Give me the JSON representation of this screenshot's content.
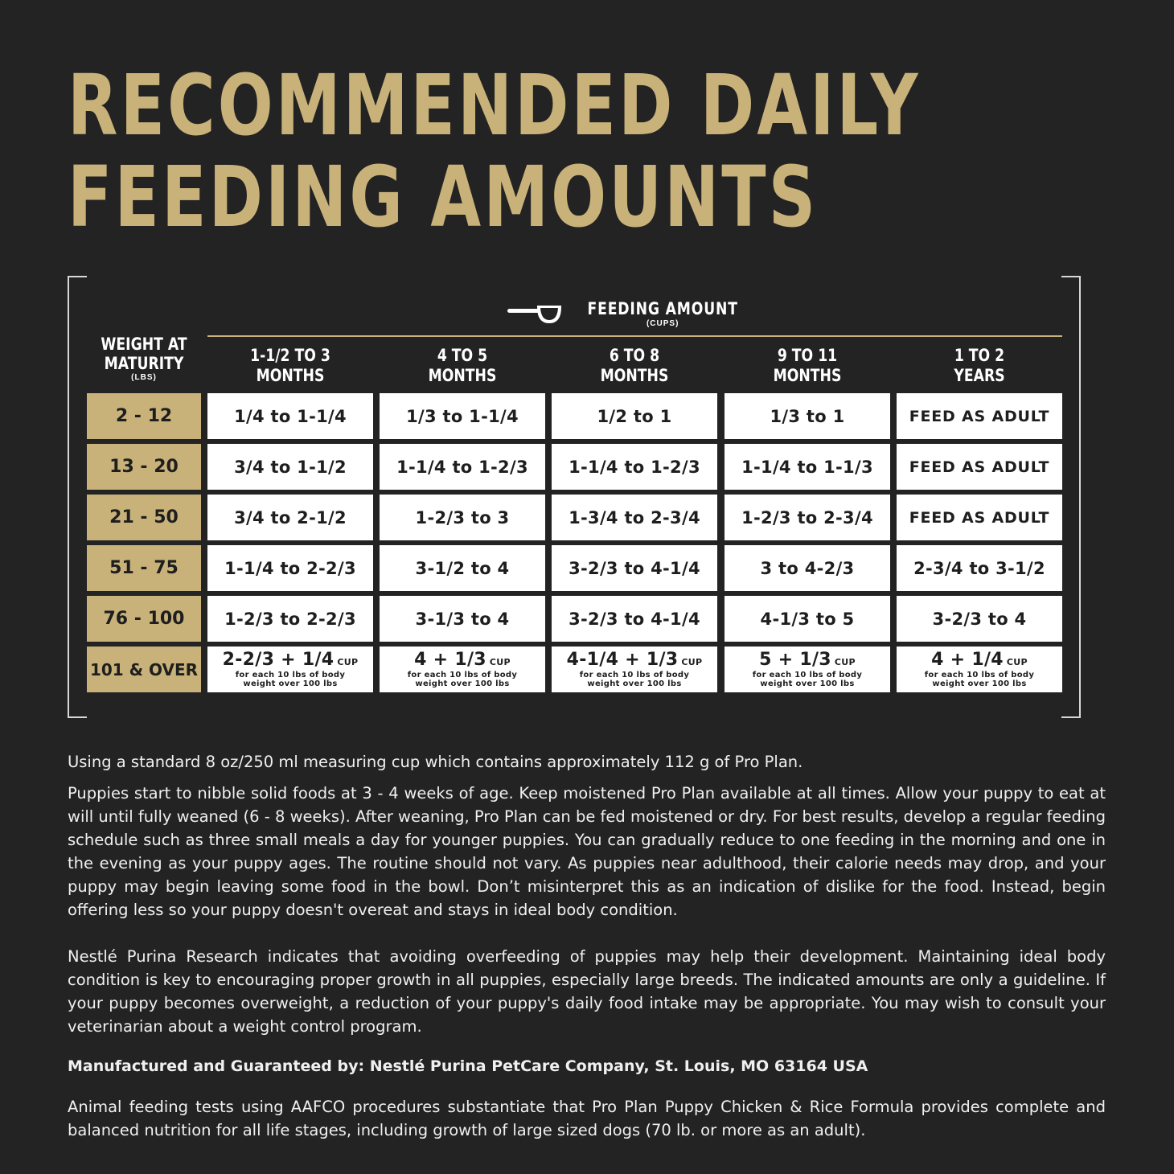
{
  "title": {
    "line1": "RECOMMENDED DAILY",
    "line2": "FEEDING AMOUNTS"
  },
  "icons": {
    "measuring_cup": "measuring-scoop-icon"
  },
  "colors": {
    "background": "#232323",
    "gold": "#c9b27a",
    "cell": "#ffffff"
  },
  "table": {
    "feeding_amount": "FEEDING AMOUNT",
    "feeding_unit": "(CUPS)",
    "weight_header": {
      "line1": "WEIGHT AT",
      "line2": "MATURITY",
      "unit": "(LBS)"
    },
    "columns": [
      {
        "line1": "1-1/2 TO 3",
        "line2": "MONTHS"
      },
      {
        "line1": "4 TO 5",
        "line2": "MONTHS"
      },
      {
        "line1": "6 TO 8",
        "line2": "MONTHS"
      },
      {
        "line1": "9 TO 11",
        "line2": "MONTHS"
      },
      {
        "line1": "1 TO 2",
        "line2": "YEARS"
      }
    ],
    "rows": [
      {
        "weight": "2 - 12",
        "cells": [
          "1/4 to 1-1/4",
          "1/3 to 1-1/4",
          "1/2 to 1",
          "1/3 to 1",
          "FEED AS ADULT"
        ]
      },
      {
        "weight": "13 - 20",
        "cells": [
          "3/4 to 1-1/2",
          "1-1/4 to 1-2/3",
          "1-1/4 to 1-2/3",
          "1-1/4 to 1-1/3",
          "FEED AS ADULT"
        ]
      },
      {
        "weight": "21 - 50",
        "cells": [
          "3/4 to 2-1/2",
          "1-2/3 to 3",
          "1-3/4 to 2-3/4",
          "1-2/3 to 2-3/4",
          "FEED AS ADULT"
        ]
      },
      {
        "weight": "51 - 75",
        "cells": [
          "1-1/4 to 2-2/3",
          "3-1/2 to 4",
          "3-2/3 to 4-1/4",
          "3 to 4-2/3",
          "2-3/4 to 3-1/2"
        ]
      },
      {
        "weight": "76 - 100",
        "cells": [
          "1-2/3 to 2-2/3",
          "3-1/3 to 4",
          "3-2/3 to 4-1/4",
          "4-1/3 to 5",
          "3-2/3 to 4"
        ]
      }
    ],
    "last_row": {
      "weight": "101 & OVER",
      "cells": [
        {
          "amount": "2-2/3 + 1/4",
          "unit": "CUP"
        },
        {
          "amount": "4 + 1/3",
          "unit": "CUP"
        },
        {
          "amount": "4-1/4 + 1/3",
          "unit": "CUP"
        },
        {
          "amount": "5 + 1/3",
          "unit": "CUP"
        },
        {
          "amount": "4 + 1/4",
          "unit": "CUP"
        }
      ],
      "note_line1": "for each 10 lbs of body",
      "note_line2": "weight over 100 lbs"
    }
  },
  "paragraphs": {
    "p1": "Using a standard 8 oz/250 ml measuring cup which contains approximately 112 g of Pro Plan.",
    "p2": "Puppies start to nibble solid foods at 3 - 4 weeks of age. Keep moistened Pro Plan available at all times. Allow your puppy to eat at will until fully weaned (6 - 8 weeks). After weaning, Pro Plan can be fed moistened or dry. For best results, develop a regular feeding schedule such as three small meals a day for younger puppies. You can gradually reduce to one feeding in the morning and one in the evening as your puppy ages. The routine should not vary. As puppies near adulthood, their calorie needs may drop, and your puppy may begin leaving some food in the bowl. Don’t misinterpret this as an indication of dislike for the food. Instead, begin offering less so your puppy doesn't overeat and stays in ideal body condition.",
    "p3": "Nestlé Purina Research indicates that avoiding overfeeding of puppies may help their development. Maintaining ideal body condition is key to encouraging proper growth in all puppies, especially large breeds. The indicated amounts are only a guideline. If your puppy becomes overweight, a reduction of your puppy's daily food intake may be appropriate. You may wish to consult your veterinarian about a weight control program.",
    "p4": "Manufactured and Guaranteed by: Nestlé Purina PetCare Company, St. Louis, MO 63164 USA",
    "p5": "Animal feeding tests using AAFCO procedures substantiate that Pro Plan Puppy Chicken & Rice Formula provides complete and balanced nutrition for all life stages, including growth of large sized dogs (70 lb. or more as an adult)."
  }
}
